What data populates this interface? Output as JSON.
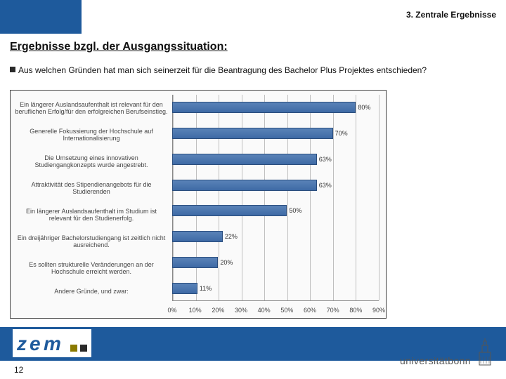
{
  "section_label": "3. Zentrale Ergebnisse",
  "heading": "Ergebnisse bzgl. der Ausgangssituation:",
  "bullet_text": "Aus welchen Gründen hat man sich seinerzeit für die Beantragung des Bachelor Plus Projektes entschieden?",
  "page_number": "12",
  "colors": {
    "header_blue": "#1e5a9c",
    "bar_fill_top": "#5a83b8",
    "bar_fill_bottom": "#3e6aa5",
    "bar_border": "#2a4d7d",
    "grid": "#bfbfbf",
    "chart_bg": "#fafafa"
  },
  "chart": {
    "type": "bar",
    "orientation": "horizontal",
    "xlim": [
      0,
      90
    ],
    "x_tick_step": 10,
    "x_tick_suffix": "%",
    "bar_color": "#3e6aa5",
    "grid_color": "#bfbfbf",
    "background_color": "#fafafa",
    "label_fontsize": 9,
    "categories": [
      "Ein längerer Auslandsaufenthalt ist relevant für den beruflichen Erfolg/für den erfolgreichen Berufseinstieg.",
      "Generelle Fokussierung der Hochschule auf Internationalisierung",
      "Die Umsetzung eines innovativen Studiengangkonzepts wurde angestrebt.",
      "Attraktivität des Stipendienangebots für die Studierenden",
      "Ein längerer Auslandsaufenthalt im Studium ist relevant für den Studienerfolg.",
      "Ein dreijähriger Bachelorstudiengang ist zeitlich nicht ausreichend.",
      "Es sollten strukturelle Veränderungen an der Hochschule erreicht werden.",
      "Andere Gründe, und zwar:"
    ],
    "values": [
      80,
      70,
      63,
      63,
      50,
      22,
      20,
      11
    ],
    "value_labels": [
      "80%",
      "70%",
      "63%",
      "63%",
      "50%",
      "22%",
      "20%",
      "11%"
    ]
  },
  "logos": {
    "zem_text": "zem",
    "bonn_text": "universitätbonn"
  }
}
